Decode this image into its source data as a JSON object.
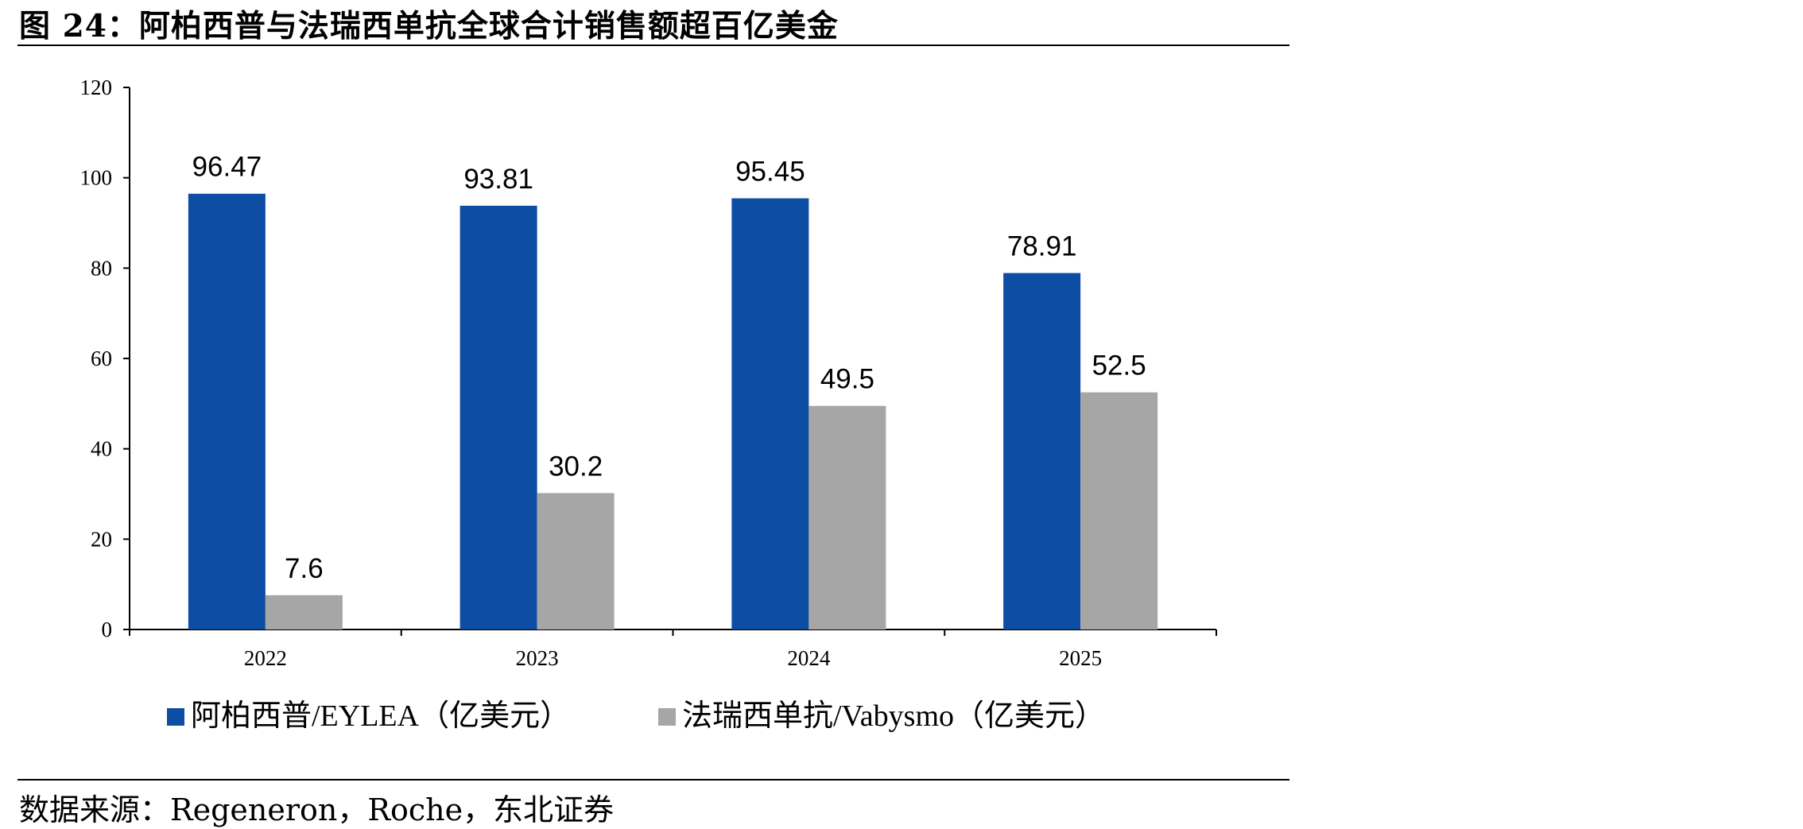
{
  "figure": {
    "title": "图 24：阿柏西普与法瑞西单抗全球合计销售额超百亿美金",
    "source": "数据来源：Regeneron，Roche，东北证券"
  },
  "chart_data": {
    "type": "bar",
    "categories": [
      "2022",
      "2023",
      "2024",
      "2025"
    ],
    "series": [
      {
        "name": "阿柏西普/EYLEA（亿美元）",
        "color": "#0E4DA4",
        "values": [
          96.47,
          93.81,
          95.45,
          78.91
        ],
        "labels": [
          "96.47",
          "93.81",
          "95.45",
          "78.91"
        ]
      },
      {
        "name": "法瑞西单抗/Vabysmo（亿美元）",
        "color": "#A6A6A6",
        "values": [
          7.6,
          30.2,
          49.5,
          52.5
        ],
        "labels": [
          "7.6",
          "30.2",
          "49.5",
          "52.5"
        ]
      }
    ],
    "ylim": [
      0,
      120
    ],
    "yticks": [
      0,
      20,
      40,
      60,
      80,
      100,
      120
    ],
    "grid": false,
    "legend_position": "bottom"
  }
}
